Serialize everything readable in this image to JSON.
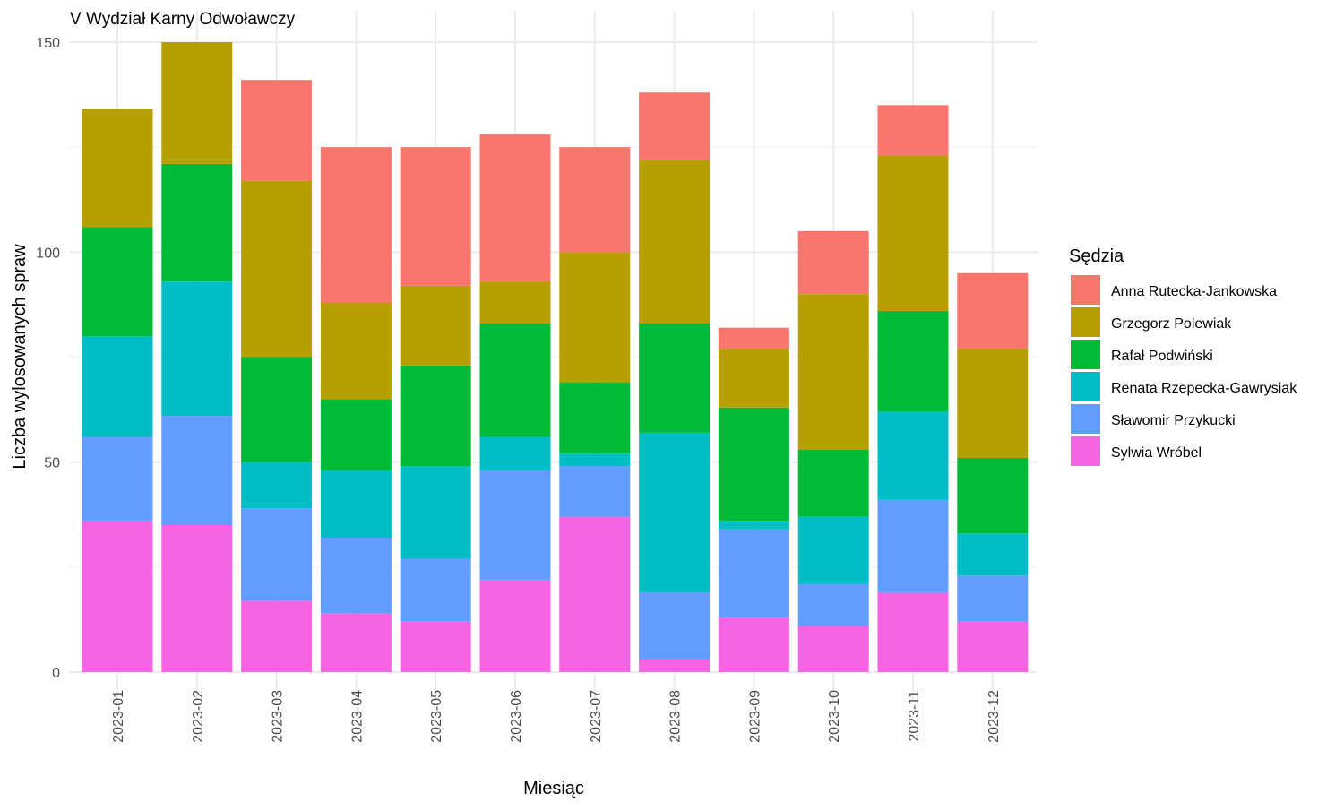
{
  "chart_data": {
    "type": "bar",
    "stacked": true,
    "title": "V Wydział Karny Odwoławczy",
    "xlabel": "Miesiąc",
    "ylabel": "Liczba wylosowanych spraw",
    "ylim": [
      0,
      150
    ],
    "yticks": [
      0,
      50,
      100,
      150
    ],
    "grid": true,
    "legend_title": "Sędzia",
    "legend_position": "right",
    "categories": [
      "2023-01",
      "2023-02",
      "2023-03",
      "2023-04",
      "2023-05",
      "2023-06",
      "2023-07",
      "2023-08",
      "2023-09",
      "2023-10",
      "2023-11",
      "2023-12"
    ],
    "series": [
      {
        "name": "Anna Rutecka-Jankowska",
        "color": "#F8766D",
        "values": [
          0,
          0,
          24,
          37,
          33,
          35,
          25,
          16,
          5,
          15,
          12,
          18
        ]
      },
      {
        "name": "Grzegorz Polewiak",
        "color": "#B79F00",
        "values": [
          28,
          29,
          42,
          23,
          19,
          10,
          31,
          39,
          14,
          37,
          37,
          26
        ]
      },
      {
        "name": "Rafał Podwiński",
        "color": "#00BA38",
        "values": [
          26,
          28,
          25,
          17,
          24,
          27,
          17,
          26,
          27,
          16,
          24,
          18
        ]
      },
      {
        "name": "Renata Rzepecka-Gawrysiak",
        "color": "#00BFC4",
        "values": [
          24,
          32,
          11,
          16,
          22,
          8,
          3,
          38,
          2,
          16,
          21,
          10
        ]
      },
      {
        "name": "Sławomir Przykucki",
        "color": "#619CFF",
        "values": [
          20,
          26,
          22,
          18,
          15,
          26,
          12,
          16,
          21,
          10,
          22,
          11
        ]
      },
      {
        "name": "Sylwia Wróbel",
        "color": "#F564E3",
        "values": [
          36,
          35,
          17,
          14,
          12,
          22,
          37,
          3,
          13,
          11,
          19,
          12
        ]
      }
    ]
  }
}
